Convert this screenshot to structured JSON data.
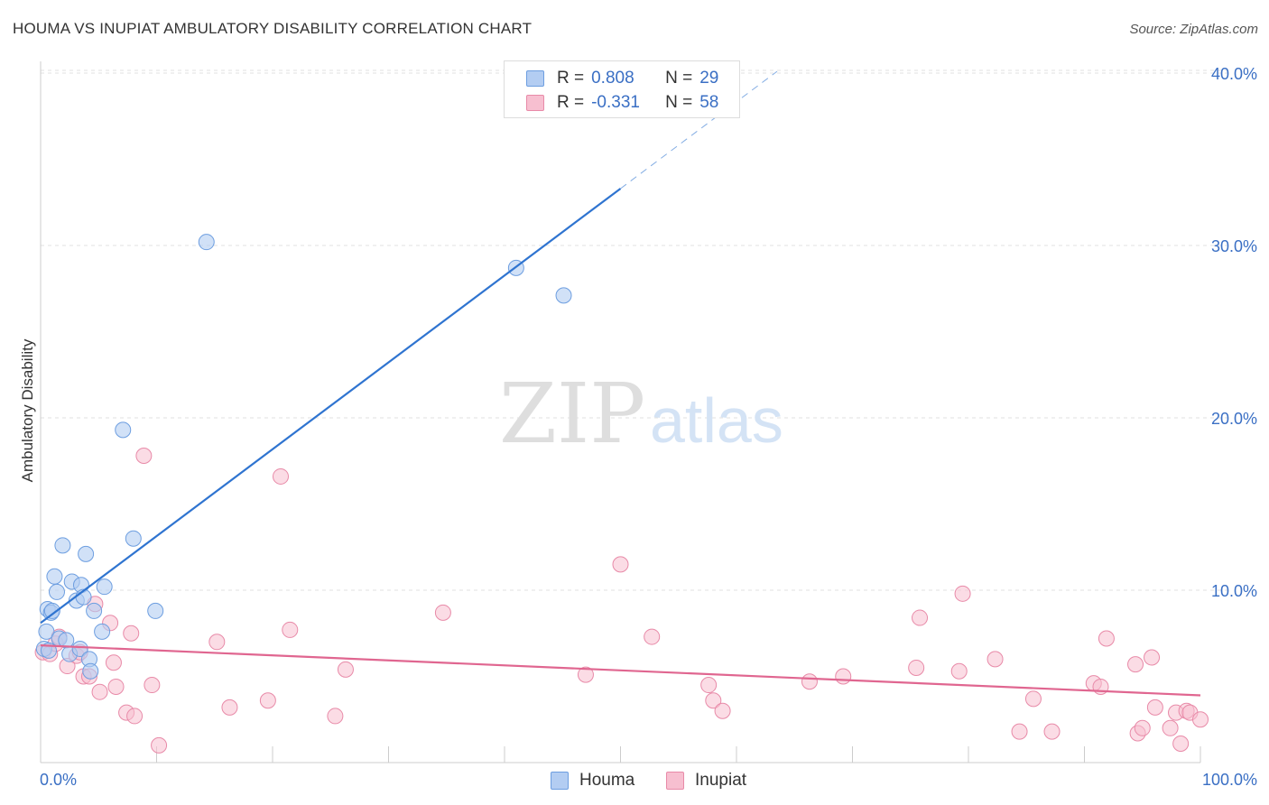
{
  "header": {
    "title": "HOUMA VS INUPIAT AMBULATORY DISABILITY CORRELATION CHART",
    "source": "Source: ZipAtlas.com"
  },
  "watermark": {
    "zip": "ZIP",
    "atlas": "atlas"
  },
  "legend_top": {
    "rows": [
      {
        "r_label": "R =",
        "r_value": "0.808",
        "n_label": "N =",
        "n_value": "29"
      },
      {
        "r_label": "R =",
        "r_value": "-0.331",
        "n_label": "N =",
        "n_value": "58"
      }
    ]
  },
  "legend_bottom": {
    "houma": "Houma",
    "inupiat": "Inupiat"
  },
  "colors": {
    "houma_fill": "#b3cdf2",
    "houma_stroke": "#6d9ee0",
    "houma_line": "#2f74d0",
    "inupiat_fill": "#f7bfd0",
    "inupiat_stroke": "#e88aa8",
    "inupiat_line": "#e06690",
    "grid": "#e2e2e2",
    "axis": "#cccccc",
    "tick_text": "#3a6fc4"
  },
  "chart_data": {
    "type": "scatter",
    "title": "HOUMA VS INUPIAT AMBULATORY DISABILITY CORRELATION CHART",
    "xlabel": "",
    "ylabel": "Ambulatory Disability",
    "xlim": [
      0,
      100
    ],
    "ylim": [
      0,
      41
    ],
    "x_tick_labels": [
      "0.0%",
      "100.0%"
    ],
    "y_ticks": [
      10,
      20,
      30,
      40
    ],
    "y_tick_labels": [
      "10.0%",
      "20.0%",
      "30.0%",
      "40.0%"
    ],
    "series": [
      {
        "name": "Houma",
        "r": 0.808,
        "n": 29,
        "trend": {
          "x0": 0,
          "y0": 8.1,
          "x1": 50,
          "y1": 33.3,
          "dashed_to_x": 63.5,
          "dashed_to_y": 40.1
        },
        "points": [
          [
            0.3,
            6.6
          ],
          [
            0.5,
            7.6
          ],
          [
            0.6,
            8.9
          ],
          [
            0.9,
            8.7
          ],
          [
            1.0,
            8.8
          ],
          [
            1.2,
            10.8
          ],
          [
            1.4,
            9.9
          ],
          [
            1.6,
            7.2
          ],
          [
            1.9,
            12.6
          ],
          [
            2.2,
            7.1
          ],
          [
            2.5,
            6.3
          ],
          [
            2.7,
            10.5
          ],
          [
            3.1,
            9.4
          ],
          [
            3.4,
            6.6
          ],
          [
            3.5,
            10.3
          ],
          [
            3.7,
            9.6
          ],
          [
            3.9,
            12.1
          ],
          [
            4.2,
            6.0
          ],
          [
            4.3,
            5.3
          ],
          [
            4.6,
            8.8
          ],
          [
            5.3,
            7.6
          ],
          [
            5.5,
            10.2
          ],
          [
            7.1,
            19.3
          ],
          [
            8.0,
            13.0
          ],
          [
            9.9,
            8.8
          ],
          [
            14.3,
            30.2
          ],
          [
            41.0,
            28.7
          ],
          [
            45.1,
            27.1
          ],
          [
            0.7,
            6.5
          ]
        ]
      },
      {
        "name": "Inupiat",
        "r": -0.331,
        "n": 58,
        "trend": {
          "x0": 0,
          "y0": 6.8,
          "x1": 100,
          "y1": 3.9
        },
        "points": [
          [
            0.2,
            6.4
          ],
          [
            0.8,
            6.3
          ],
          [
            1.3,
            6.9
          ],
          [
            1.6,
            7.3
          ],
          [
            2.3,
            5.6
          ],
          [
            3.1,
            6.2
          ],
          [
            3.4,
            6.4
          ],
          [
            3.7,
            5.0
          ],
          [
            4.2,
            5.0
          ],
          [
            4.7,
            9.2
          ],
          [
            5.1,
            4.1
          ],
          [
            6.0,
            8.1
          ],
          [
            6.3,
            5.8
          ],
          [
            6.5,
            4.4
          ],
          [
            7.4,
            2.9
          ],
          [
            7.8,
            7.5
          ],
          [
            8.1,
            2.7
          ],
          [
            8.9,
            17.8
          ],
          [
            9.6,
            4.5
          ],
          [
            10.2,
            1.0
          ],
          [
            15.2,
            7.0
          ],
          [
            16.3,
            3.2
          ],
          [
            19.6,
            3.6
          ],
          [
            20.7,
            16.6
          ],
          [
            21.5,
            7.7
          ],
          [
            25.4,
            2.7
          ],
          [
            26.3,
            5.4
          ],
          [
            34.7,
            8.7
          ],
          [
            47.0,
            5.1
          ],
          [
            50.0,
            11.5
          ],
          [
            52.7,
            7.3
          ],
          [
            57.6,
            4.5
          ],
          [
            58.0,
            3.6
          ],
          [
            58.8,
            3.0
          ],
          [
            66.3,
            4.7
          ],
          [
            69.2,
            5.0
          ],
          [
            75.5,
            5.5
          ],
          [
            75.8,
            8.4
          ],
          [
            79.2,
            5.3
          ],
          [
            79.5,
            9.8
          ],
          [
            82.3,
            6.0
          ],
          [
            84.4,
            1.8
          ],
          [
            85.6,
            3.7
          ],
          [
            87.2,
            1.8
          ],
          [
            90.8,
            4.6
          ],
          [
            91.4,
            4.4
          ],
          [
            91.9,
            7.2
          ],
          [
            94.4,
            5.7
          ],
          [
            94.6,
            1.7
          ],
          [
            95.0,
            2.0
          ],
          [
            95.8,
            6.1
          ],
          [
            96.1,
            3.2
          ],
          [
            97.4,
            2.0
          ],
          [
            97.9,
            2.9
          ],
          [
            98.3,
            1.1
          ],
          [
            98.8,
            3.0
          ],
          [
            99.1,
            2.9
          ],
          [
            100.0,
            2.5
          ]
        ]
      }
    ]
  }
}
